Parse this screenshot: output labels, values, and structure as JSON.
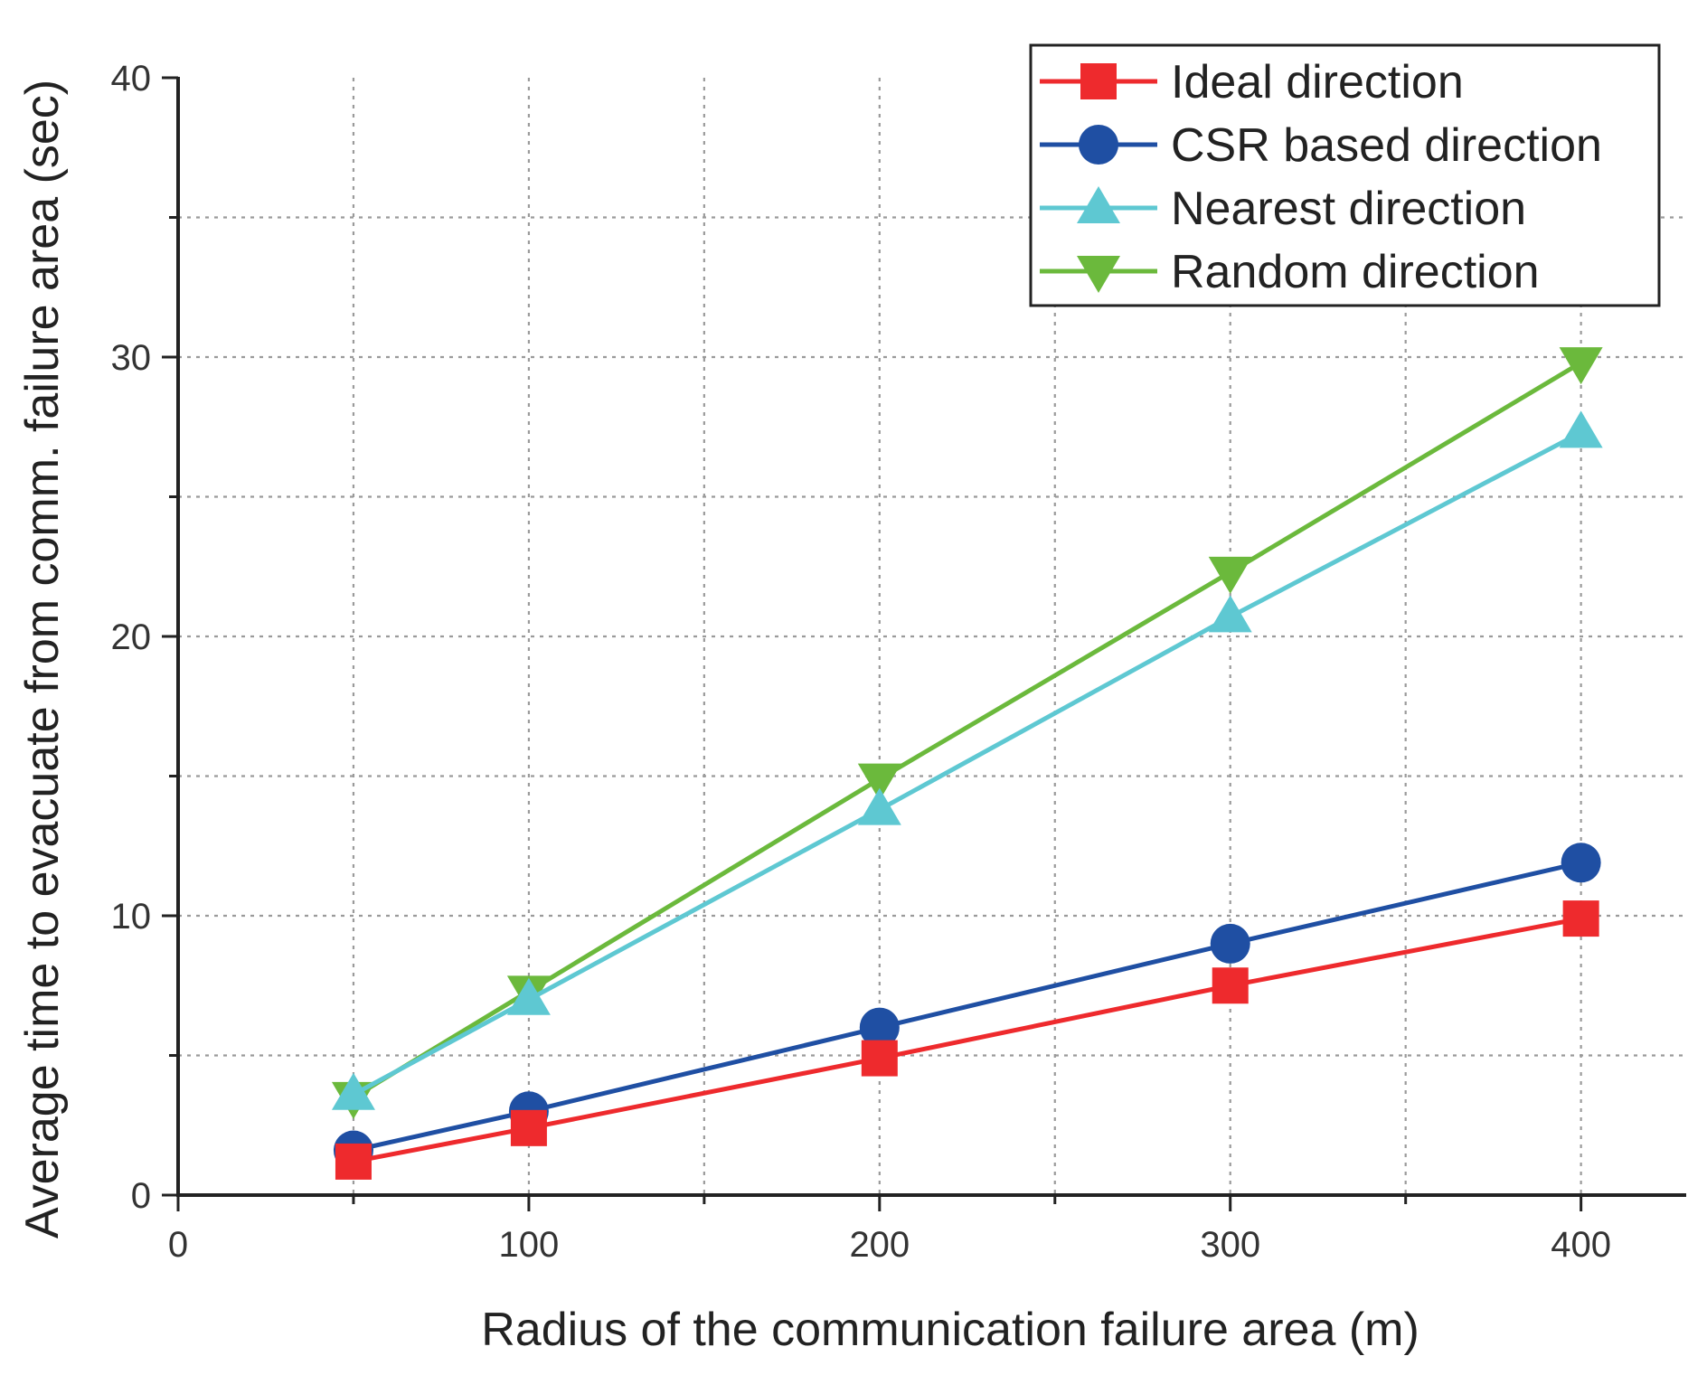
{
  "chart_data": {
    "type": "line",
    "title": "",
    "xlabel": "Radius of the communication failure area (m)",
    "ylabel": "Average time to evacuate from comm. failure area (sec)",
    "xlim": [
      0,
      430
    ],
    "ylim": [
      0,
      40
    ],
    "x_ticks": [
      0,
      100,
      200,
      300,
      400
    ],
    "y_ticks": [
      0,
      10,
      20,
      30,
      40
    ],
    "x_grid": [
      50,
      100,
      150,
      200,
      250,
      300,
      350,
      400
    ],
    "y_grid": [
      5,
      10,
      15,
      20,
      25,
      30,
      35
    ],
    "grid": true,
    "legend_position": "top-right",
    "x": [
      50,
      100,
      200,
      300,
      400
    ],
    "series": [
      {
        "name": "Ideal direction",
        "marker": "square",
        "color": "#ee2a2d",
        "values": [
          1.2,
          2.4,
          4.9,
          7.5,
          9.9
        ]
      },
      {
        "name": "CSR based direction",
        "marker": "circle",
        "color": "#1f4fa3",
        "values": [
          1.6,
          3.0,
          6.0,
          9.0,
          11.9
        ]
      },
      {
        "name": "Nearest direction",
        "marker": "triangle-up",
        "color": "#5ec8d2",
        "values": [
          3.6,
          7.0,
          13.8,
          20.7,
          27.3
        ]
      },
      {
        "name": "Random direction",
        "marker": "triangle-down",
        "color": "#6bb93c",
        "values": [
          3.5,
          7.3,
          14.9,
          22.3,
          29.8
        ]
      }
    ]
  }
}
